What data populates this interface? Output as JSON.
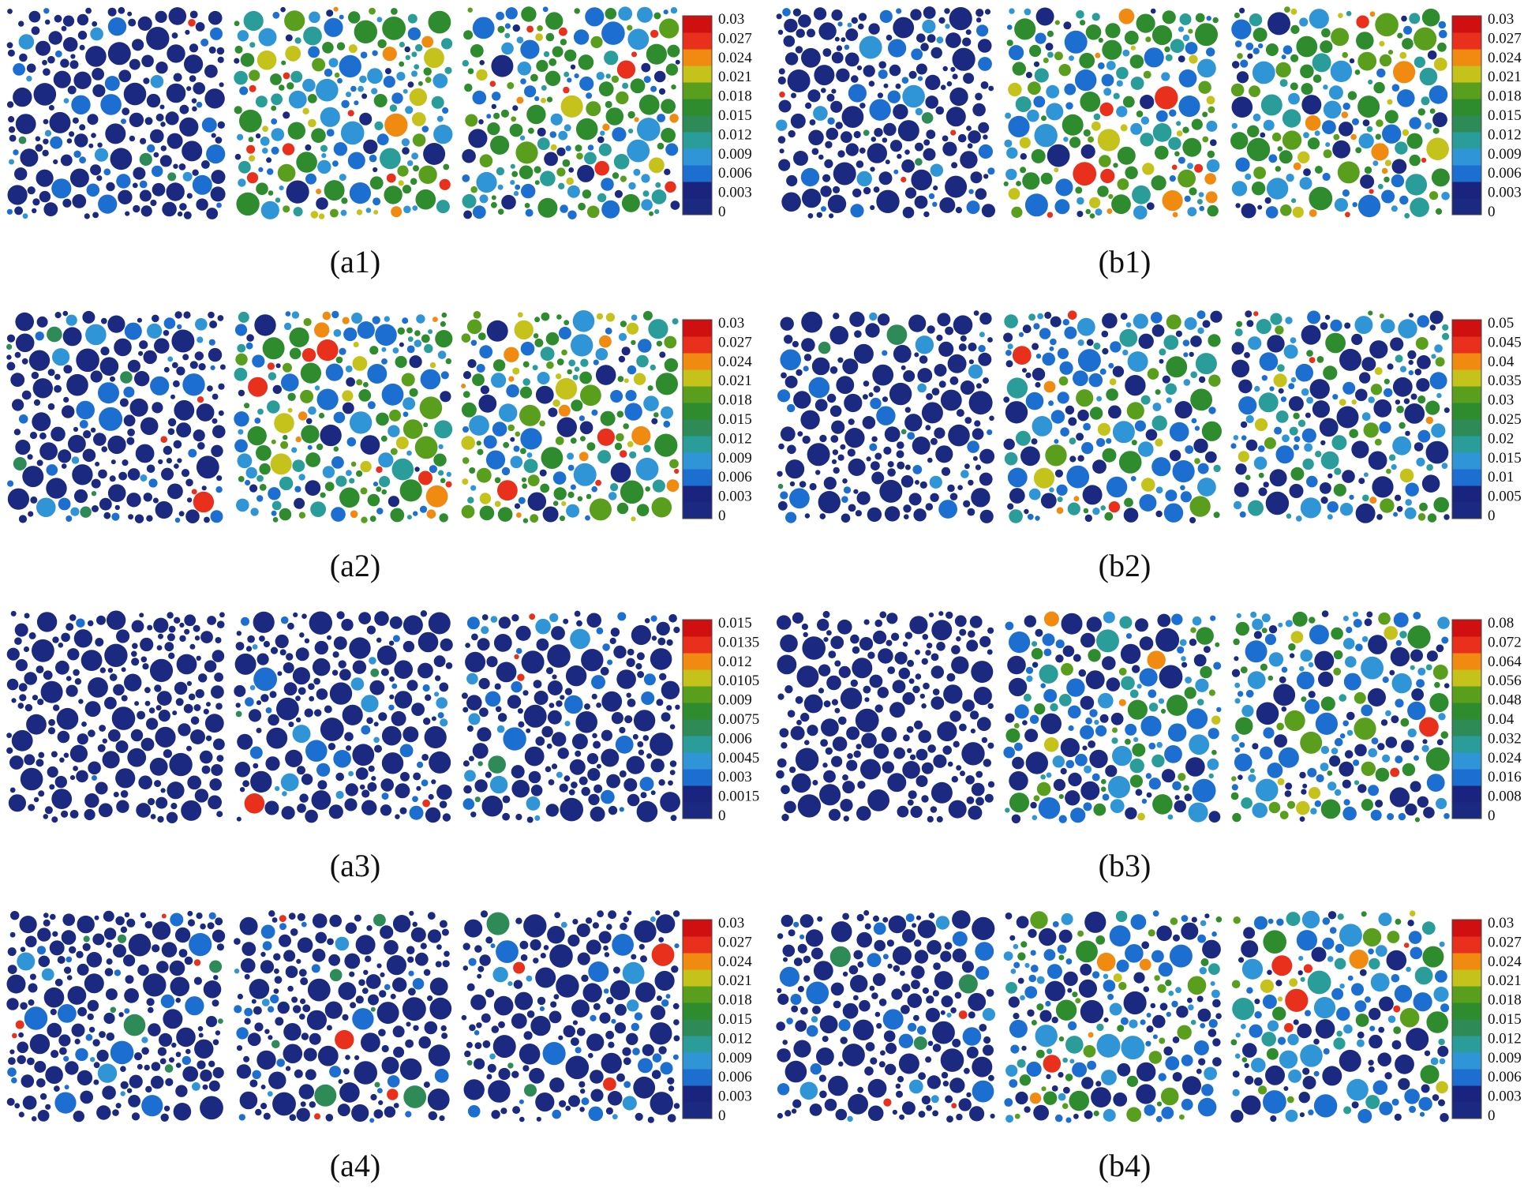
{
  "figure": {
    "panels": [
      {
        "id": "a1",
        "caption": "(a1)",
        "colorbar_ticks": [
          "0.03",
          "0.027",
          "0.024",
          "0.021",
          "0.018",
          "0.015",
          "0.012",
          "0.009",
          "0.006",
          "0.003",
          "0"
        ],
        "states": [
          "sparse",
          "high",
          "high"
        ]
      },
      {
        "id": "b1",
        "caption": "(b1)",
        "colorbar_ticks": [
          "0.03",
          "0.027",
          "0.024",
          "0.021",
          "0.018",
          "0.015",
          "0.012",
          "0.009",
          "0.006",
          "0.003",
          "0"
        ],
        "states": [
          "sparse",
          "high",
          "high"
        ]
      },
      {
        "id": "a2",
        "caption": "(a2)",
        "colorbar_ticks": [
          "0.03",
          "0.027",
          "0.024",
          "0.021",
          "0.018",
          "0.015",
          "0.012",
          "0.009",
          "0.006",
          "0.003",
          "0"
        ],
        "states": [
          "sparse",
          "high",
          "high"
        ]
      },
      {
        "id": "b2",
        "caption": "(b2)",
        "colorbar_ticks": [
          "0.05",
          "0.045",
          "0.04",
          "0.035",
          "0.03",
          "0.025",
          "0.02",
          "0.015",
          "0.01",
          "0.005",
          "0"
        ],
        "states": [
          "sparse",
          "medium",
          "medium"
        ]
      },
      {
        "id": "a3",
        "caption": "(a3)",
        "colorbar_ticks": [
          "0.015",
          "0.0135",
          "0.012",
          "0.0105",
          "0.009",
          "0.0075",
          "0.006",
          "0.0045",
          "0.003",
          "0.0015",
          "0"
        ],
        "states": [
          "empty",
          "sparse",
          "sparse"
        ]
      },
      {
        "id": "b3",
        "caption": "(b3)",
        "colorbar_ticks": [
          "0.08",
          "0.072",
          "0.064",
          "0.056",
          "0.048",
          "0.04",
          "0.032",
          "0.024",
          "0.016",
          "0.008",
          "0"
        ],
        "states": [
          "empty",
          "medium",
          "medium"
        ]
      },
      {
        "id": "a4",
        "caption": "(a4)",
        "colorbar_ticks": [
          "0.03",
          "0.027",
          "0.024",
          "0.021",
          "0.018",
          "0.015",
          "0.012",
          "0.009",
          "0.006",
          "0.003",
          "0"
        ],
        "states": [
          "sparse",
          "sparse",
          "sparse"
        ]
      },
      {
        "id": "b4",
        "caption": "(b4)",
        "colorbar_ticks": [
          "0.03",
          "0.027",
          "0.024",
          "0.021",
          "0.018",
          "0.015",
          "0.012",
          "0.009",
          "0.006",
          "0.003",
          "0"
        ],
        "states": [
          "sparse",
          "medium",
          "medium"
        ]
      }
    ],
    "colormap": [
      "#1b2a80",
      "#1a237e",
      "#1c6fd1",
      "#2f95d6",
      "#2a9d9a",
      "#2e8b57",
      "#2e8b2e",
      "#5a9e1e",
      "#c6c21c",
      "#f08a10",
      "#e8301c",
      "#d01010"
    ]
  }
}
